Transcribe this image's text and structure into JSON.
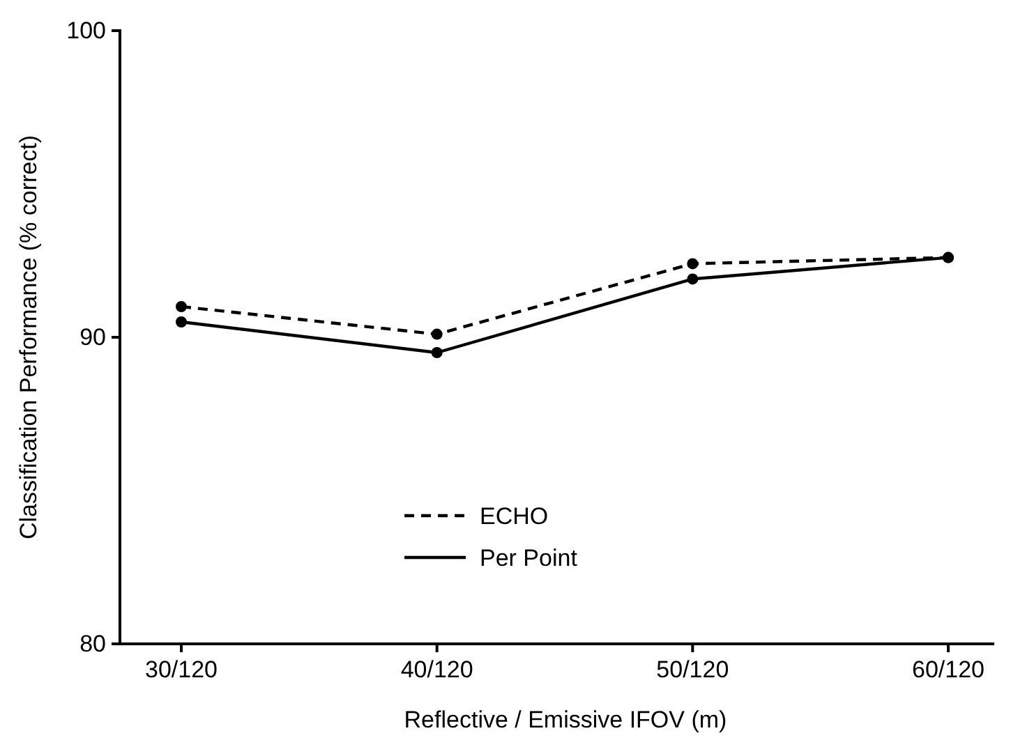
{
  "chart_data": {
    "type": "line",
    "xlabel": "Reflective / Emissive  IFOV (m)",
    "ylabel": "Classification Performance (% correct)",
    "categories": [
      "30/120",
      "40/120",
      "50/120",
      "60/120"
    ],
    "series": [
      {
        "name": "ECHO",
        "color": "#000000",
        "values": [
          91.0,
          90.1,
          92.4,
          92.6
        ],
        "line_style": "dashed"
      },
      {
        "name": "Per Point",
        "color": "#000000",
        "values": [
          90.5,
          89.5,
          91.9,
          92.6
        ],
        "line_style": "solid"
      }
    ],
    "ylim": [
      80,
      100
    ],
    "yticks": [
      80,
      90,
      100
    ],
    "grid": false,
    "legend": "bottom",
    "marker": "circle"
  }
}
